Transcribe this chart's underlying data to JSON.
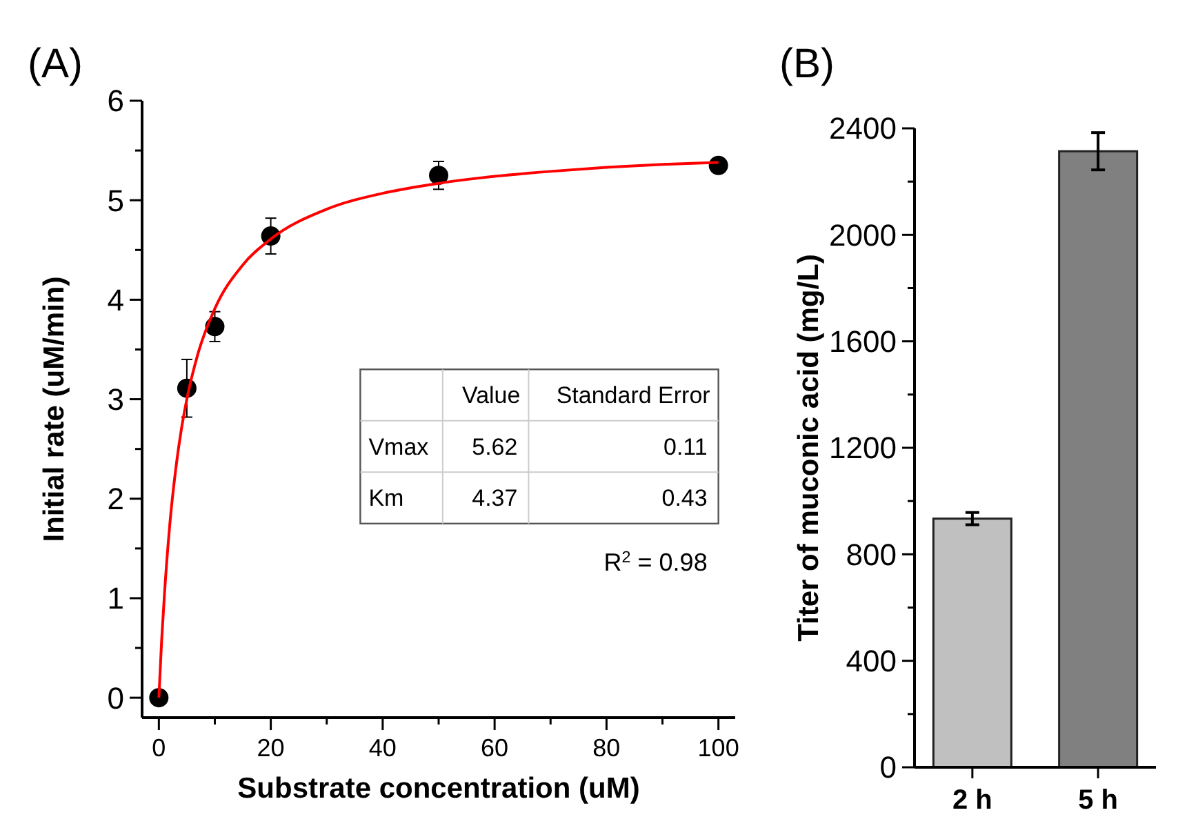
{
  "chart_data": [
    {
      "type": "scatter",
      "title": "(A)",
      "xlabel": "Substrate concentration (uM)",
      "ylabel": "Initial rate (uM/min)",
      "xlim": [
        -3,
        103
      ],
      "xticks": [
        0,
        {
          "value": 10,
          "label": null
        },
        20,
        {
          "value": 30,
          "label": null
        },
        40,
        {
          "value": 50,
          "label": null
        },
        60,
        {
          "value": 70,
          "label": null
        },
        80,
        {
          "value": 90,
          "label": null
        },
        100
      ],
      "ylim": [
        -0.2,
        6
      ],
      "yticks": [
        0,
        {
          "value": 0.5,
          "label": null
        },
        1,
        {
          "value": 1.5,
          "label": null
        },
        2,
        {
          "value": 2.5,
          "label": null
        },
        3,
        {
          "value": 3.5,
          "label": null
        },
        4,
        {
          "value": 4.5,
          "label": null
        },
        5,
        {
          "value": 5.5,
          "label": null
        },
        6
      ],
      "series": [
        {
          "color": "#000000",
          "marker": "circle",
          "x": [
            0,
            5,
            10,
            20,
            50,
            100
          ],
          "values": [
            0,
            3.11,
            3.73,
            4.64,
            5.25,
            5.35
          ],
          "errors": [
            null,
            0.29,
            0.15,
            0.18,
            0.14,
            null
          ]
        },
        {
          "type": "line",
          "color": "#ff0000",
          "marker": "none",
          "line_style": "solid",
          "x": [
            0,
            0.5,
            1,
            2,
            3,
            4,
            5,
            7,
            10,
            15,
            20,
            30,
            40,
            50,
            60,
            70,
            80,
            90,
            100
          ],
          "values": [
            0,
            0.58,
            1.04,
            1.77,
            2.29,
            2.69,
            3.0,
            3.46,
            3.91,
            4.35,
            4.61,
            4.91,
            5.07,
            5.17,
            5.24,
            5.29,
            5.33,
            5.36,
            5.38
          ]
        }
      ],
      "annotations": [
        "Value",
        "Standard Error",
        "Vmax",
        "5.62",
        "0.11",
        "Km",
        "4.37",
        "0.43",
        "R$^{2}$ = 0.98"
      ]
    },
    {
      "type": "bar",
      "title": "(B)",
      "ylabel": "Titer of muconic acid (mg/L)",
      "categories": [
        "2 h",
        "5 h"
      ],
      "values": [
        934,
        2314
      ],
      "errors": [
        23,
        70
      ],
      "colors": [
        "#c0c0c0",
        "#808080"
      ],
      "ylim": [
        0,
        2400
      ],
      "yticks": [
        0,
        {
          "value": 200,
          "label": null
        },
        400,
        {
          "value": 600,
          "label": null
        },
        800,
        {
          "value": 1000,
          "label": null
        },
        1200,
        {
          "value": 1400,
          "label": null
        },
        1600,
        {
          "value": 1800,
          "label": null
        },
        2000,
        {
          "value": 2200,
          "label": null
        },
        2400
      ]
    }
  ]
}
